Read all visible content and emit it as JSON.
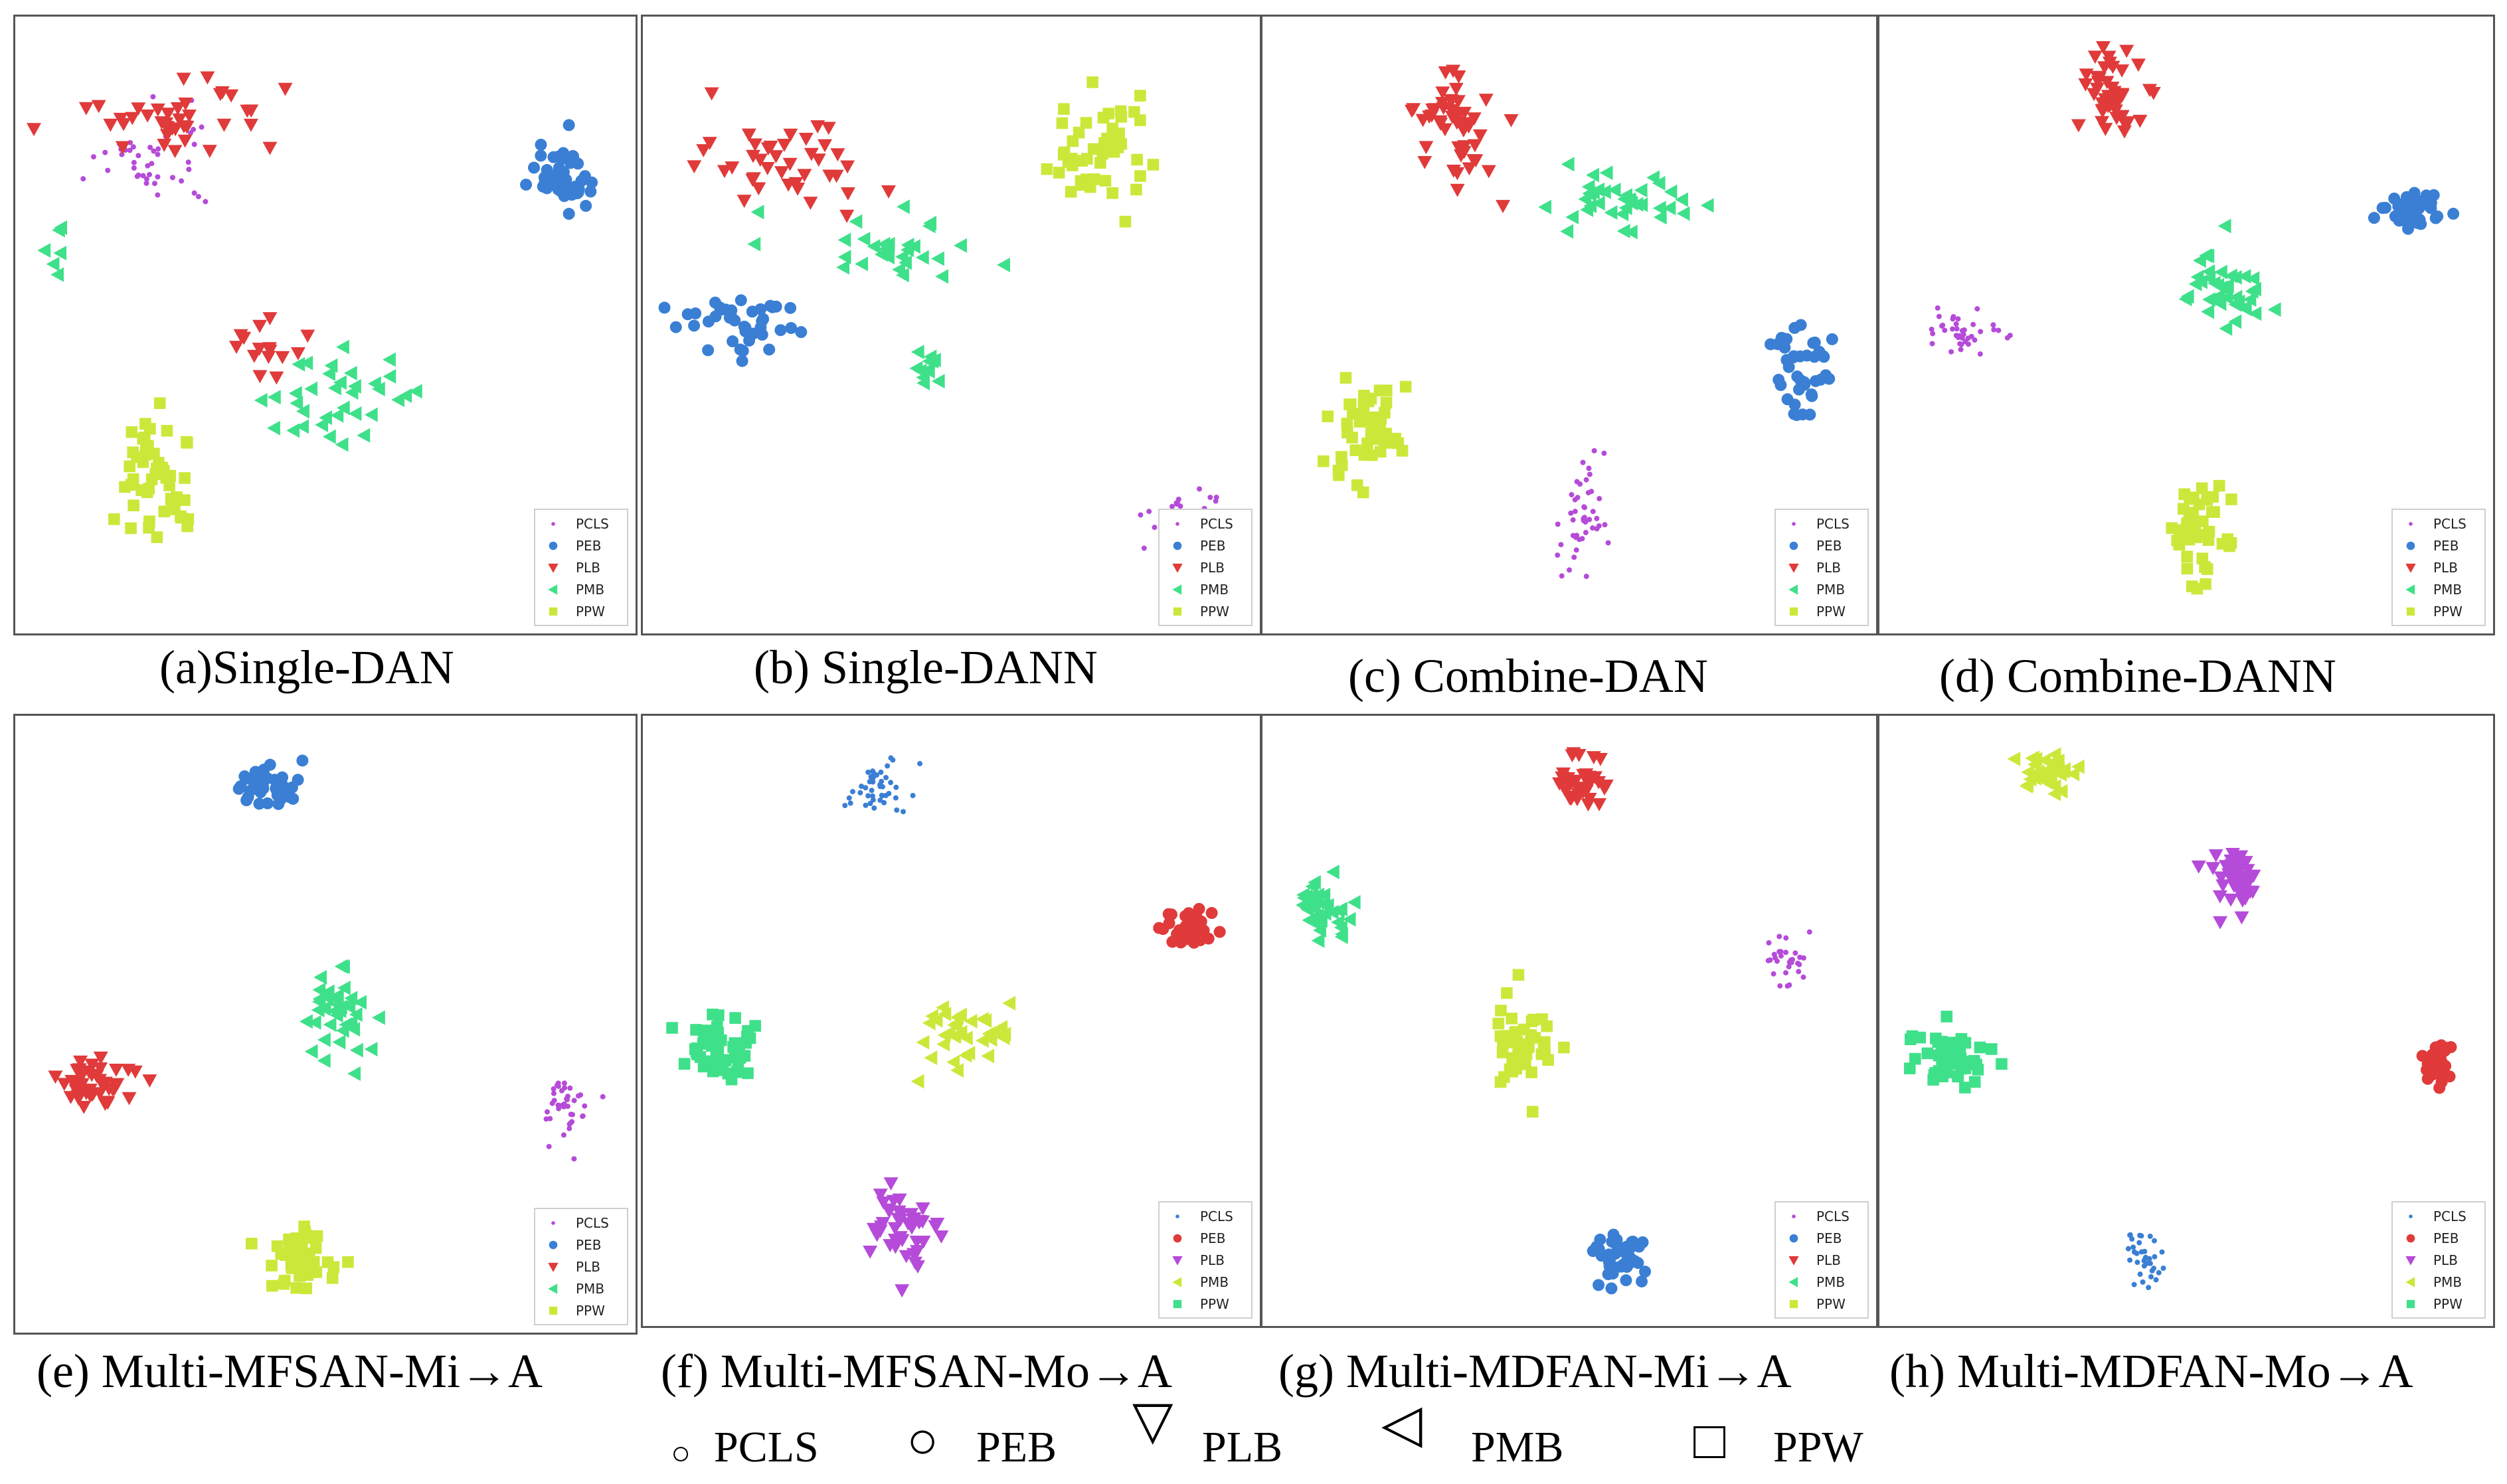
{
  "figure": {
    "legend_items": [
      {
        "label": "PCLS",
        "symbol": "○"
      },
      {
        "label": "PEB",
        "symbol": "○"
      },
      {
        "label": "PLB",
        "symbol": "▽"
      },
      {
        "label": "PMB",
        "symbol": "◁"
      },
      {
        "label": "PPW",
        "symbol": "□"
      }
    ]
  },
  "chart_data": [
    {
      "type": "scatter",
      "title": "(a)Single-DAN",
      "legend": [
        {
          "label": "PCLS",
          "color": "#b54bd8",
          "marker": "dot"
        },
        {
          "label": "PEB",
          "color": "#3a7fd4",
          "marker": "circle"
        },
        {
          "label": "PLB",
          "color": "#e03a3a",
          "marker": "tri-down"
        },
        {
          "label": "PMB",
          "color": "#3fe08a",
          "marker": "tri-left"
        },
        {
          "label": "PPW",
          "color": "#cbe83a",
          "marker": "square"
        }
      ],
      "clusters": [
        {
          "class": "PCLS",
          "center": [
            0.22,
            0.24
          ],
          "spread": [
            0.08,
            0.07
          ],
          "n": 45
        },
        {
          "class": "PLB",
          "center": [
            0.26,
            0.17
          ],
          "spread": [
            0.13,
            0.06
          ],
          "n": 40
        },
        {
          "class": "PLB",
          "center": [
            0.4,
            0.54
          ],
          "spread": [
            0.05,
            0.05
          ],
          "n": 15
        },
        {
          "class": "PEB",
          "center": [
            0.88,
            0.26
          ],
          "spread": [
            0.05,
            0.05
          ],
          "n": 45
        },
        {
          "class": "PMB",
          "center": [
            0.52,
            0.62
          ],
          "spread": [
            0.11,
            0.06
          ],
          "n": 35
        },
        {
          "class": "PMB",
          "center": [
            0.07,
            0.38
          ],
          "spread": [
            0.02,
            0.03
          ],
          "n": 6
        },
        {
          "class": "PPW",
          "center": [
            0.23,
            0.74
          ],
          "spread": [
            0.07,
            0.09
          ],
          "n": 50
        }
      ]
    },
    {
      "type": "scatter",
      "title": "(b) Single-DANN",
      "legend": [
        {
          "label": "PCLS",
          "color": "#b54bd8",
          "marker": "dot"
        },
        {
          "label": "PEB",
          "color": "#3a7fd4",
          "marker": "circle"
        },
        {
          "label": "PLB",
          "color": "#e03a3a",
          "marker": "tri-down"
        },
        {
          "label": "PMB",
          "color": "#3fe08a",
          "marker": "tri-left"
        },
        {
          "label": "PPW",
          "color": "#cbe83a",
          "marker": "square"
        }
      ],
      "clusters": [
        {
          "class": "PLB",
          "center": [
            0.23,
            0.24
          ],
          "spread": [
            0.12,
            0.07
          ],
          "n": 40
        },
        {
          "class": "PEB",
          "center": [
            0.16,
            0.5
          ],
          "spread": [
            0.09,
            0.05
          ],
          "n": 40
        },
        {
          "class": "PMB",
          "center": [
            0.4,
            0.38
          ],
          "spread": [
            0.12,
            0.05
          ],
          "n": 30
        },
        {
          "class": "PMB",
          "center": [
            0.46,
            0.57
          ],
          "spread": [
            0.03,
            0.03
          ],
          "n": 12
        },
        {
          "class": "PPW",
          "center": [
            0.74,
            0.21
          ],
          "spread": [
            0.07,
            0.09
          ],
          "n": 50
        },
        {
          "class": "PCLS",
          "center": [
            0.88,
            0.84
          ],
          "spread": [
            0.06,
            0.07
          ],
          "n": 50
        }
      ]
    },
    {
      "type": "scatter",
      "title": "(c) Combine-DAN",
      "legend": [
        {
          "label": "PCLS",
          "color": "#b54bd8",
          "marker": "dot"
        },
        {
          "label": "PEB",
          "color": "#3a7fd4",
          "marker": "circle"
        },
        {
          "label": "PLB",
          "color": "#e03a3a",
          "marker": "tri-down"
        },
        {
          "label": "PMB",
          "color": "#3fe08a",
          "marker": "tri-left"
        },
        {
          "label": "PPW",
          "color": "#cbe83a",
          "marker": "square"
        }
      ],
      "clusters": [
        {
          "class": "PLB",
          "center": [
            0.32,
            0.18
          ],
          "spread": [
            0.07,
            0.09
          ],
          "n": 50
        },
        {
          "class": "PMB",
          "center": [
            0.58,
            0.3
          ],
          "spread": [
            0.12,
            0.05
          ],
          "n": 40
        },
        {
          "class": "PEB",
          "center": [
            0.88,
            0.56
          ],
          "spread": [
            0.04,
            0.09
          ],
          "n": 40
        },
        {
          "class": "PPW",
          "center": [
            0.17,
            0.67
          ],
          "spread": [
            0.06,
            0.07
          ],
          "n": 50
        },
        {
          "class": "PCLS",
          "center": [
            0.52,
            0.8
          ],
          "spread": [
            0.04,
            0.1
          ],
          "n": 45
        }
      ]
    },
    {
      "type": "scatter",
      "title": "(d) Combine-DANN",
      "legend": [
        {
          "label": "PCLS",
          "color": "#b54bd8",
          "marker": "dot"
        },
        {
          "label": "PEB",
          "color": "#3a7fd4",
          "marker": "circle"
        },
        {
          "label": "PLB",
          "color": "#e03a3a",
          "marker": "tri-down"
        },
        {
          "label": "PMB",
          "color": "#3fe08a",
          "marker": "tri-left"
        },
        {
          "label": "PPW",
          "color": "#cbe83a",
          "marker": "square"
        }
      ],
      "clusters": [
        {
          "class": "PLB",
          "center": [
            0.37,
            0.12
          ],
          "spread": [
            0.05,
            0.07
          ],
          "n": 45
        },
        {
          "class": "PEB",
          "center": [
            0.87,
            0.31
          ],
          "spread": [
            0.05,
            0.03
          ],
          "n": 40
        },
        {
          "class": "PMB",
          "center": [
            0.56,
            0.45
          ],
          "spread": [
            0.06,
            0.06
          ],
          "n": 40
        },
        {
          "class": "PCLS",
          "center": [
            0.14,
            0.51
          ],
          "spread": [
            0.05,
            0.03
          ],
          "n": 40
        },
        {
          "class": "PPW",
          "center": [
            0.52,
            0.83
          ],
          "spread": [
            0.04,
            0.07
          ],
          "n": 45
        }
      ]
    },
    {
      "type": "scatter",
      "title": "(e) Multi-MFSAN-Mi→A",
      "legend": [
        {
          "label": "PCLS",
          "color": "#b54bd8",
          "marker": "dot"
        },
        {
          "label": "PEB",
          "color": "#3a7fd4",
          "marker": "circle"
        },
        {
          "label": "PLB",
          "color": "#e03a3a",
          "marker": "tri-down"
        },
        {
          "label": "PMB",
          "color": "#3fe08a",
          "marker": "tri-left"
        },
        {
          "label": "PPW",
          "color": "#cbe83a",
          "marker": "square"
        }
      ],
      "clusters": [
        {
          "class": "PEB",
          "center": [
            0.41,
            0.12
          ],
          "spread": [
            0.04,
            0.04
          ],
          "n": 40
        },
        {
          "class": "PMB",
          "center": [
            0.52,
            0.48
          ],
          "spread": [
            0.05,
            0.07
          ],
          "n": 40
        },
        {
          "class": "PLB",
          "center": [
            0.12,
            0.6
          ],
          "spread": [
            0.06,
            0.04
          ],
          "n": 45
        },
        {
          "class": "PCLS",
          "center": [
            0.89,
            0.63
          ],
          "spread": [
            0.04,
            0.05
          ],
          "n": 40
        },
        {
          "class": "PPW",
          "center": [
            0.46,
            0.88
          ],
          "spread": [
            0.05,
            0.05
          ],
          "n": 50
        }
      ]
    },
    {
      "type": "scatter",
      "title": "(f) Multi-MFSAN-Mo→A",
      "legend": [
        {
          "label": "PCLS",
          "color": "#3a7fd4",
          "marker": "dot"
        },
        {
          "label": "PEB",
          "color": "#e03a3a",
          "marker": "circle"
        },
        {
          "label": "PLB",
          "color": "#b54bd8",
          "marker": "tri-down"
        },
        {
          "label": "PMB",
          "color": "#cbe83a",
          "marker": "tri-left"
        },
        {
          "label": "PPW",
          "color": "#3fe08a",
          "marker": "square"
        }
      ],
      "clusters": [
        {
          "class": "PCLS",
          "center": [
            0.38,
            0.12
          ],
          "spread": [
            0.05,
            0.04
          ],
          "n": 45
        },
        {
          "class": "PEB",
          "center": [
            0.88,
            0.35
          ],
          "spread": [
            0.04,
            0.03
          ],
          "n": 40
        },
        {
          "class": "PPW",
          "center": [
            0.12,
            0.54
          ],
          "spread": [
            0.06,
            0.05
          ],
          "n": 50
        },
        {
          "class": "PMB",
          "center": [
            0.52,
            0.52
          ],
          "spread": [
            0.06,
            0.04
          ],
          "n": 35
        },
        {
          "class": "PLB",
          "center": [
            0.42,
            0.85
          ],
          "spread": [
            0.05,
            0.06
          ],
          "n": 45
        }
      ]
    },
    {
      "type": "scatter",
      "title": "(g) Multi-MDFAN-Mi→A",
      "legend": [
        {
          "label": "PCLS",
          "color": "#b54bd8",
          "marker": "dot"
        },
        {
          "label": "PEB",
          "color": "#3a7fd4",
          "marker": "circle"
        },
        {
          "label": "PLB",
          "color": "#e03a3a",
          "marker": "tri-down"
        },
        {
          "label": "PMB",
          "color": "#3fe08a",
          "marker": "tri-left"
        },
        {
          "label": "PPW",
          "color": "#cbe83a",
          "marker": "square"
        }
      ],
      "clusters": [
        {
          "class": "PLB",
          "center": [
            0.52,
            0.11
          ],
          "spread": [
            0.04,
            0.04
          ],
          "n": 40
        },
        {
          "class": "PMB",
          "center": [
            0.1,
            0.32
          ],
          "spread": [
            0.04,
            0.05
          ],
          "n": 35
        },
        {
          "class": "PCLS",
          "center": [
            0.85,
            0.4
          ],
          "spread": [
            0.03,
            0.03
          ],
          "n": 30
        },
        {
          "class": "PPW",
          "center": [
            0.42,
            0.54
          ],
          "spread": [
            0.04,
            0.05
          ],
          "n": 45
        },
        {
          "class": "PEB",
          "center": [
            0.58,
            0.89
          ],
          "spread": [
            0.04,
            0.04
          ],
          "n": 45
        }
      ]
    },
    {
      "type": "scatter",
      "title": "(h) Multi-MDFAN-Mo→A",
      "legend": [
        {
          "label": "PCLS",
          "color": "#3a7fd4",
          "marker": "dot"
        },
        {
          "label": "PEB",
          "color": "#e03a3a",
          "marker": "circle"
        },
        {
          "label": "PLB",
          "color": "#b54bd8",
          "marker": "tri-down"
        },
        {
          "label": "PMB",
          "color": "#cbe83a",
          "marker": "tri-left"
        },
        {
          "label": "PPW",
          "color": "#3fe08a",
          "marker": "square"
        }
      ],
      "clusters": [
        {
          "class": "PMB",
          "center": [
            0.28,
            0.09
          ],
          "spread": [
            0.04,
            0.03
          ],
          "n": 40
        },
        {
          "class": "PLB",
          "center": [
            0.58,
            0.27
          ],
          "spread": [
            0.04,
            0.05
          ],
          "n": 40
        },
        {
          "class": "PPW",
          "center": [
            0.12,
            0.56
          ],
          "spread": [
            0.05,
            0.04
          ],
          "n": 50
        },
        {
          "class": "PEB",
          "center": [
            0.91,
            0.57
          ],
          "spread": [
            0.02,
            0.03
          ],
          "n": 35
        },
        {
          "class": "PCLS",
          "center": [
            0.43,
            0.89
          ],
          "spread": [
            0.03,
            0.04
          ],
          "n": 35
        }
      ]
    }
  ]
}
